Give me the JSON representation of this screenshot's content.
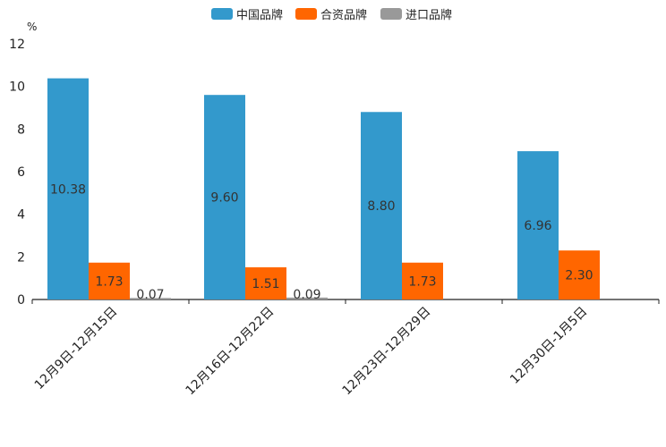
{
  "chart_data": {
    "type": "bar",
    "title": "",
    "xlabel": "",
    "ylabel": "%",
    "ylim": [
      0,
      12
    ],
    "yticks": [
      0,
      2,
      4,
      6,
      8,
      10,
      12
    ],
    "grid": false,
    "legend_position": "top-center",
    "categories": [
      "12月9日-12月15日",
      "12月16日-12月22日",
      "12月23日-12月29日",
      "12月30日-1月5日"
    ],
    "series": [
      {
        "name": "中国品牌",
        "color": "#3399cc",
        "values": [
          10.38,
          9.6,
          8.8,
          6.96
        ],
        "labels": [
          "10.38",
          "9.60",
          "8.80",
          "6.96"
        ]
      },
      {
        "name": "合资品牌",
        "color": "#ff6600",
        "values": [
          1.73,
          1.51,
          1.73,
          2.3
        ],
        "labels": [
          "1.73",
          "1.51",
          "1.73",
          "2.30"
        ]
      },
      {
        "name": "进口品牌",
        "color": "#999999",
        "values": [
          0.07,
          0.09,
          null,
          null
        ],
        "labels": [
          "0.07",
          "0.09",
          null,
          null
        ]
      }
    ]
  }
}
